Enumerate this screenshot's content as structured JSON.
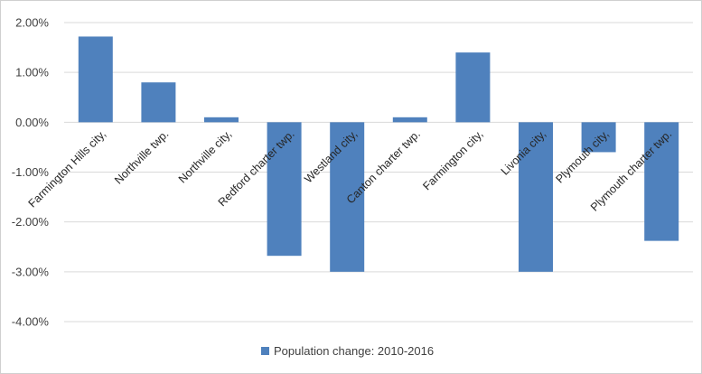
{
  "chart_data": {
    "type": "bar",
    "categories": [
      "Farmington Hills city,",
      "Northville twp.",
      "Northville city,",
      "Redford charter twp.",
      "Westland city,",
      "Canton charter twp.",
      "Farmington city,",
      "Livonia city,",
      "Plymouth city,",
      "Plymouth charter twp."
    ],
    "series": [
      {
        "name": "Population change: 2010-2016",
        "values": [
          1.72,
          0.8,
          0.1,
          -2.68,
          -3.0,
          0.1,
          1.4,
          -3.0,
          -0.6,
          -2.38
        ],
        "color": "#4f81bd"
      }
    ],
    "ylim": [
      -4,
      2
    ],
    "yticks": [
      2,
      1,
      0,
      -1,
      -2,
      -3,
      -4
    ],
    "ytick_labels": [
      "2.00%",
      "1.00%",
      "0.00%",
      "-1.00%",
      "-2.00%",
      "-3.00%",
      "-4.00%"
    ],
    "grid": true,
    "gridline_color": "#d9d9d9",
    "legend_position": "bottom",
    "title": "",
    "xlabel": "",
    "ylabel": ""
  }
}
